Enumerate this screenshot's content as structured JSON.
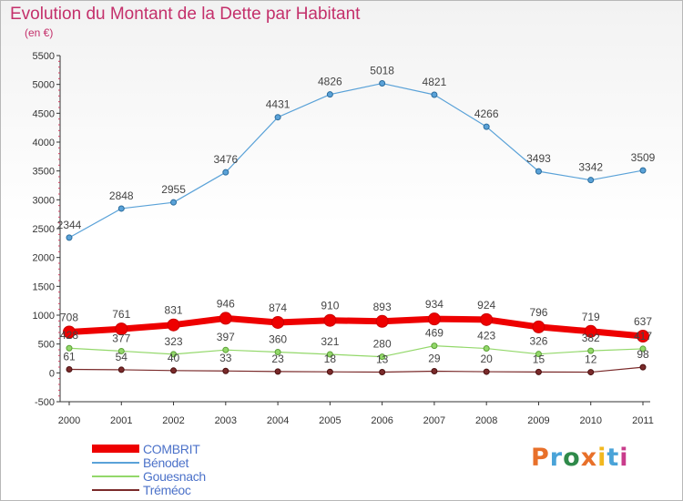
{
  "title": "Evolution du Montant de la Dette par Habitant",
  "subtitle": "(en €)",
  "brand": "Proxiti",
  "brand_colors": [
    "#e8702a",
    "#4aa3d8",
    "#2f8a4a",
    "#e8702a",
    "#f2b81f",
    "#4aa3d8",
    "#c93c8c"
  ],
  "chart_data": {
    "type": "line",
    "x": [
      "2000",
      "2001",
      "2002",
      "2003",
      "2004",
      "2005",
      "2006",
      "2007",
      "2008",
      "2009",
      "2010",
      "2011"
    ],
    "ylim": [
      -500,
      5500
    ],
    "yticks": [
      "-500",
      "0",
      "500",
      "1000",
      "1500",
      "2000",
      "2500",
      "3000",
      "3500",
      "4000",
      "4500",
      "5000",
      "5500"
    ],
    "grid": false,
    "legend_position": "bottom-left",
    "series": [
      {
        "name": "COMBRIT",
        "color": "#ee0000",
        "values": [
          708,
          761,
          831,
          946,
          874,
          910,
          893,
          934,
          924,
          796,
          719,
          637
        ],
        "labels": [
          "708",
          "761",
          "831",
          "946",
          "874",
          "910",
          "893",
          "934",
          "924",
          "796",
          "719",
          "637"
        ]
      },
      {
        "name": "Bénodet",
        "color": "#5aa2d8",
        "values": [
          2344,
          2848,
          2955,
          3476,
          4431,
          4826,
          5018,
          4821,
          4266,
          3493,
          3342,
          3509
        ],
        "labels": [
          "2344",
          "2848",
          "2955",
          "3476",
          "4431",
          "4826",
          "5018",
          "4821",
          "4266",
          "3493",
          "3342",
          "3509"
        ]
      },
      {
        "name": "Gouesnach",
        "color": "#93d86a",
        "values": [
          428,
          377,
          323,
          397,
          360,
          321,
          280,
          469,
          423,
          326,
          382,
          417
        ],
        "labels": [
          "428",
          "377",
          "323",
          "397",
          "360",
          "321",
          "280",
          "469",
          "423",
          "326",
          "382",
          "417"
        ]
      },
      {
        "name": "Tréméoc",
        "color": "#7a2a2a",
        "values": [
          61,
          54,
          40,
          33,
          23,
          18,
          13,
          29,
          20,
          15,
          12,
          98
        ],
        "labels": [
          "61",
          "54",
          "40",
          "33",
          "23",
          "18",
          "13",
          "29",
          "20",
          "15",
          "12",
          "98"
        ]
      }
    ]
  }
}
